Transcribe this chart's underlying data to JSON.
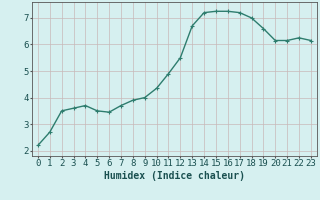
{
  "x": [
    0,
    1,
    2,
    3,
    4,
    5,
    6,
    7,
    8,
    9,
    10,
    11,
    12,
    13,
    14,
    15,
    16,
    17,
    18,
    19,
    20,
    21,
    22,
    23
  ],
  "y": [
    2.2,
    2.7,
    3.5,
    3.6,
    3.7,
    3.5,
    3.45,
    3.7,
    3.9,
    4.0,
    4.35,
    4.9,
    5.5,
    6.7,
    7.2,
    7.25,
    7.25,
    7.2,
    7.0,
    6.6,
    6.15,
    6.15,
    6.25,
    6.15
  ],
  "line_color": "#2e7d6e",
  "marker": "+",
  "marker_size": 3,
  "bg_color": "#d6f0f0",
  "grid_color": "#c8b8b8",
  "xlabel": "Humidex (Indice chaleur)",
  "xlim": [
    -0.5,
    23.5
  ],
  "ylim": [
    1.8,
    7.6
  ],
  "yticks": [
    2,
    3,
    4,
    5,
    6,
    7
  ],
  "xticks": [
    0,
    1,
    2,
    3,
    4,
    5,
    6,
    7,
    8,
    9,
    10,
    11,
    12,
    13,
    14,
    15,
    16,
    17,
    18,
    19,
    20,
    21,
    22,
    23
  ],
  "xtick_labels": [
    "0",
    "1",
    "2",
    "3",
    "4",
    "5",
    "6",
    "7",
    "8",
    "9",
    "10",
    "11",
    "12",
    "13",
    "14",
    "15",
    "16",
    "17",
    "18",
    "19",
    "20",
    "21",
    "22",
    "23"
  ],
  "font_color": "#1a5050",
  "xlabel_fontsize": 7,
  "tick_fontsize": 6.5,
  "linewidth": 1.0
}
